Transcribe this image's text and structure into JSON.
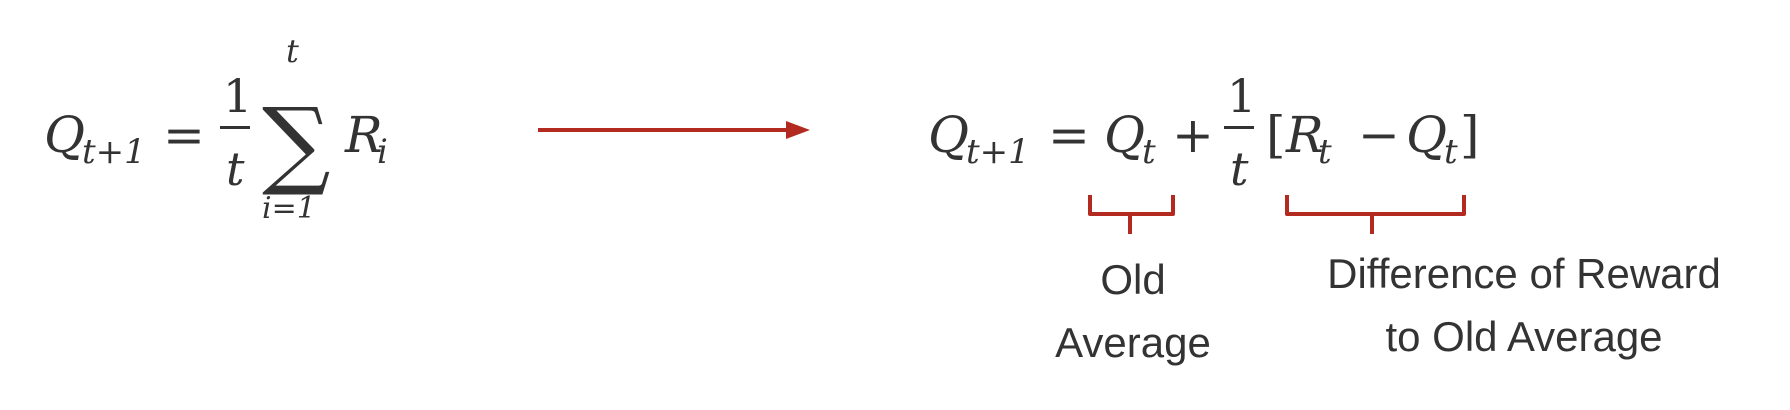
{
  "left_equation": {
    "lhs_symbol": "Q",
    "lhs_subscript": "t+1",
    "equals": "=",
    "fraction_numerator": "1",
    "fraction_denominator": "t",
    "sum_symbol": "∑",
    "sum_upper": "t",
    "sum_lower": "i=1",
    "term_symbol": "R",
    "term_subscript": "i"
  },
  "right_equation": {
    "lhs_symbol": "Q",
    "lhs_subscript": "t+1",
    "equals": "=",
    "old_symbol": "Q",
    "old_subscript": "t",
    "plus": "+",
    "fraction_numerator": "1",
    "fraction_denominator": "t",
    "open_bracket": "[",
    "reward_symbol": "R",
    "reward_subscript": "t",
    "minus": "−",
    "q_symbol": "Q",
    "q_subscript": "t",
    "close_bracket": "]"
  },
  "annotations": {
    "old_average": [
      "Old",
      "Average"
    ],
    "difference": [
      "Difference of Reward",
      "to Old Average"
    ]
  },
  "colors": {
    "accent": "#b22a20",
    "text": "#333333"
  }
}
